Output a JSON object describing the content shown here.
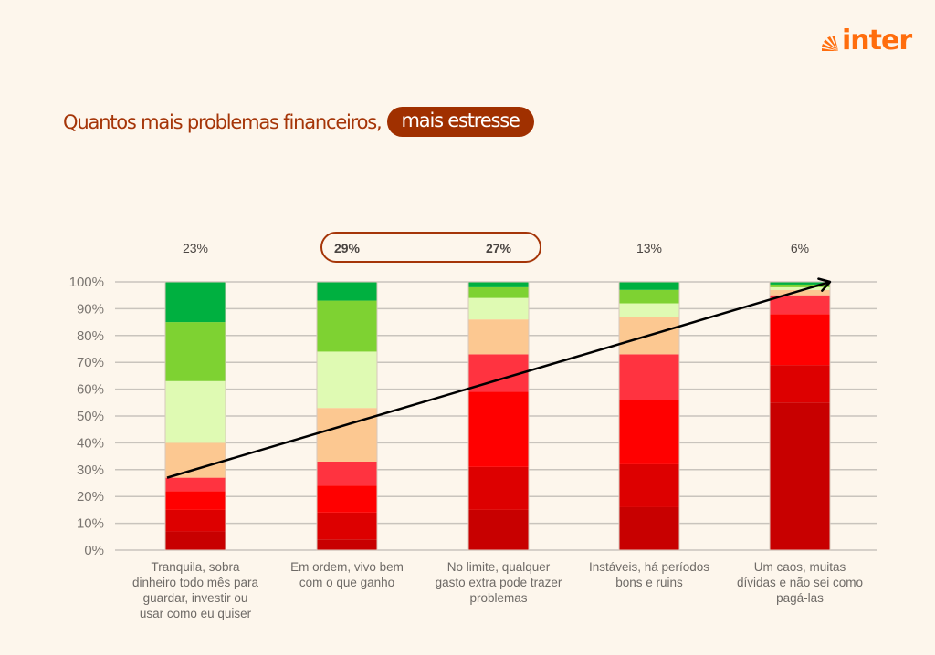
{
  "brand": {
    "logo_text": "inter",
    "color": "#ff6d0d"
  },
  "header": {
    "title": "Quantos mais problemas financeiros,",
    "title_badge": "mais estresse"
  },
  "chart_data": {
    "type": "bar",
    "stacked": true,
    "title": "Quantos mais problemas financeiros, mais estresse",
    "xlabel": "",
    "ylabel": "",
    "ylim": [
      0,
      100
    ],
    "yticks": [
      "0%",
      "10%",
      "20%",
      "30%",
      "40%",
      "50%",
      "60%",
      "70%",
      "80%",
      "90%",
      "100%"
    ],
    "grid": true,
    "categories": [
      [
        "Tranquila, sobra",
        "dinheiro todo mês para",
        "guardar, investir ou",
        "usar como eu quiser"
      ],
      [
        "Em ordem, vivo bem",
        "com o que ganho"
      ],
      [
        "No limite, qualquer",
        "gasto extra pode trazer",
        "problemas"
      ],
      [
        "Instáveis, há períodos",
        "bons e ruins"
      ],
      [
        "Um caos, muitas",
        "dívidas e não sei como",
        "pagá-las"
      ]
    ],
    "category_shares": [
      "23%",
      "29%",
      "27%",
      "13%",
      "6%"
    ],
    "highlighted_shares": [
      1,
      2
    ],
    "series": [
      {
        "name": "level-1",
        "color": "#c80000",
        "values": [
          7,
          4,
          15,
          16,
          55
        ]
      },
      {
        "name": "level-2",
        "color": "#dd0000",
        "values": [
          8,
          10,
          16,
          16,
          14
        ]
      },
      {
        "name": "level-3",
        "color": "#ff0000",
        "values": [
          7,
          10,
          28,
          24,
          19
        ]
      },
      {
        "name": "level-4",
        "color": "#ff3340",
        "values": [
          5,
          9,
          14,
          17,
          7
        ]
      },
      {
        "name": "level-5",
        "color": "#fcc891",
        "values": [
          13,
          20,
          13,
          14,
          2
        ]
      },
      {
        "name": "level-6",
        "color": "#dffab3",
        "values": [
          23,
          21,
          8,
          5,
          1
        ]
      },
      {
        "name": "level-7",
        "color": "#7ed232",
        "values": [
          22,
          19,
          4,
          5,
          1
        ]
      },
      {
        "name": "level-8",
        "color": "#00b040",
        "values": [
          15,
          7,
          2,
          3,
          1
        ]
      }
    ],
    "trend_arrow": {
      "from": [
        0,
        27
      ],
      "to": [
        4,
        100
      ],
      "color": "#000000"
    }
  }
}
